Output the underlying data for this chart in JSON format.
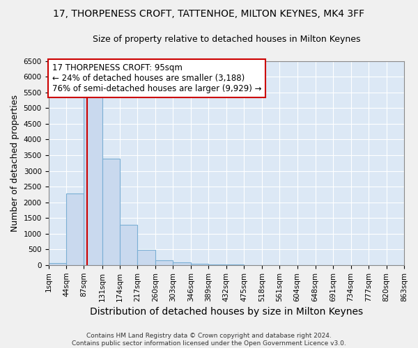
{
  "title": "17, THORPENESS CROFT, TATTENHOE, MILTON KEYNES, MK4 3FF",
  "subtitle": "Size of property relative to detached houses in Milton Keynes",
  "xlabel": "Distribution of detached houses by size in Milton Keynes",
  "ylabel": "Number of detached properties",
  "bin_edges": [
    1,
    44,
    87,
    131,
    174,
    217,
    260,
    303,
    346,
    389,
    432,
    475,
    518,
    561,
    604,
    648,
    691,
    734,
    777,
    820,
    863
  ],
  "bar_heights": [
    70,
    2270,
    5450,
    3380,
    1290,
    480,
    145,
    80,
    40,
    20,
    10,
    5,
    3,
    2,
    2,
    1,
    1,
    1,
    1,
    1
  ],
  "bar_color": "#c9d9ee",
  "bar_edge_color": "#7aafd4",
  "property_size": 95,
  "property_line_color": "#cc0000",
  "annotation_text": "17 THORPENESS CROFT: 95sqm\n← 24% of detached houses are smaller (3,188)\n76% of semi-detached houses are larger (9,929) →",
  "annotation_box_color": "#ffffff",
  "annotation_box_edge_color": "#cc0000",
  "ylim": [
    0,
    6500
  ],
  "yticks": [
    0,
    500,
    1000,
    1500,
    2000,
    2500,
    3000,
    3500,
    4000,
    4500,
    5000,
    5500,
    6000,
    6500
  ],
  "tick_labels": [
    "1sqm",
    "44sqm",
    "87sqm",
    "131sqm",
    "174sqm",
    "217sqm",
    "260sqm",
    "303sqm",
    "346sqm",
    "389sqm",
    "432sqm",
    "475sqm",
    "518sqm",
    "561sqm",
    "604sqm",
    "648sqm",
    "691sqm",
    "734sqm",
    "777sqm",
    "820sqm",
    "863sqm"
  ],
  "footer_text": "Contains HM Land Registry data © Crown copyright and database right 2024.\nContains public sector information licensed under the Open Government Licence v3.0.",
  "background_color": "#dce8f5",
  "grid_color": "#ffffff",
  "fig_background": "#f0f0f0",
  "title_fontsize": 10,
  "subtitle_fontsize": 9,
  "xlabel_fontsize": 10,
  "ylabel_fontsize": 9,
  "tick_fontsize": 7.5,
  "annotation_fontsize": 8.5,
  "footer_fontsize": 6.5
}
